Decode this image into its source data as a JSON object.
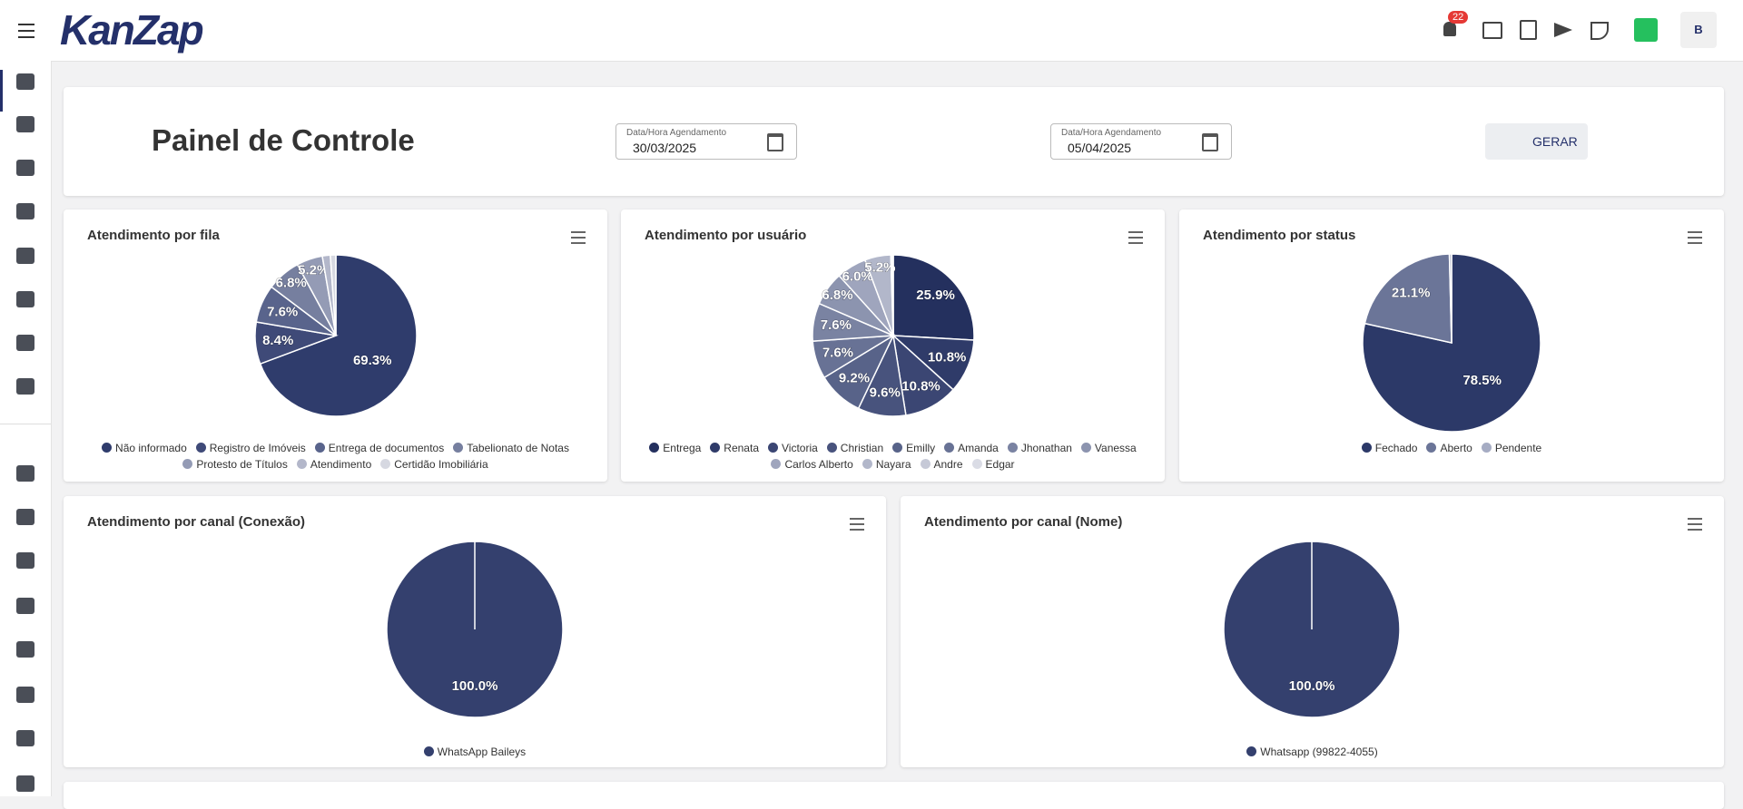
{
  "header": {
    "logo": "KanZap",
    "notifications": "22",
    "avatar": "B"
  },
  "controls": {
    "title": "Painel de Controle",
    "start": {
      "label": "Data/Hora Agendamento",
      "value": "30/03/2025"
    },
    "end": {
      "label": "Data/Hora Agendamento",
      "value": "05/04/2025"
    },
    "button": "GERAR"
  },
  "chart_data": [
    {
      "type": "pie",
      "title": "Atendimento por fila",
      "categories": [
        "Não informado",
        "Registro de Imóveis",
        "Entrega de documentos",
        "Tabelionato de Notas",
        "Protesto de Títulos",
        "Atendimento",
        "Certidão Imobiliária"
      ],
      "values": [
        69.3,
        8.4,
        7.6,
        6.8,
        5.2,
        1.6,
        1.1
      ],
      "value_labels": [
        "69.3%",
        "8.4%",
        "7.6%",
        "6.8%",
        "5.2%",
        null,
        null
      ],
      "colors": [
        "#2f3c6c",
        "#3f4a78",
        "#59648c",
        "#767f9f",
        "#949bb5",
        "#b3b7ca",
        "#d6d8e1"
      ]
    },
    {
      "type": "pie",
      "title": "Atendimento por usuário",
      "categories": [
        "Entrega",
        "Renata",
        "Victoria",
        "Christian",
        "Emilly",
        "Amanda",
        "Jhonathan",
        "Vanessa",
        "Carlos Alberto",
        "Nayara",
        "Andre",
        "Edgar"
      ],
      "values": [
        25.9,
        10.8,
        10.8,
        9.6,
        9.2,
        7.6,
        7.6,
        6.8,
        6.0,
        5.2,
        0.3,
        0.2
      ],
      "value_labels": [
        "25.9%",
        "10.8%",
        "10.8%",
        "9.6%",
        "9.2%",
        "7.6%",
        "7.6%",
        "6.8%",
        "6.0%",
        "5.2%",
        null,
        null
      ],
      "colors": [
        "#24305e",
        "#2f3b69",
        "#3b4673",
        "#48537d",
        "#586389",
        "#687295",
        "#7a83a2",
        "#8c94af",
        "#9fa5bd",
        "#b2b7ca",
        "#c6c9d7",
        "#dadce5"
      ]
    },
    {
      "type": "pie",
      "title": "Atendimento por status",
      "categories": [
        "Fechado",
        "Aberto",
        "Pendente"
      ],
      "values": [
        78.5,
        21.1,
        0.4
      ],
      "value_labels": [
        "78.5%",
        "21.1%",
        null
      ],
      "colors": [
        "#2c3968",
        "#6b7598",
        "#a6acc3"
      ]
    },
    {
      "type": "pie",
      "title": "Atendimento por canal (Conexão)",
      "categories": [
        "WhatsApp Baileys"
      ],
      "values": [
        100
      ],
      "value_labels": [
        "100.0%"
      ],
      "colors": [
        "#34406e"
      ]
    },
    {
      "type": "pie",
      "title": "Atendimento por canal (Nome)",
      "categories": [
        "Whatsapp (99822-4055)"
      ],
      "values": [
        100
      ],
      "value_labels": [
        "100.0%"
      ],
      "colors": [
        "#34406e"
      ]
    }
  ]
}
